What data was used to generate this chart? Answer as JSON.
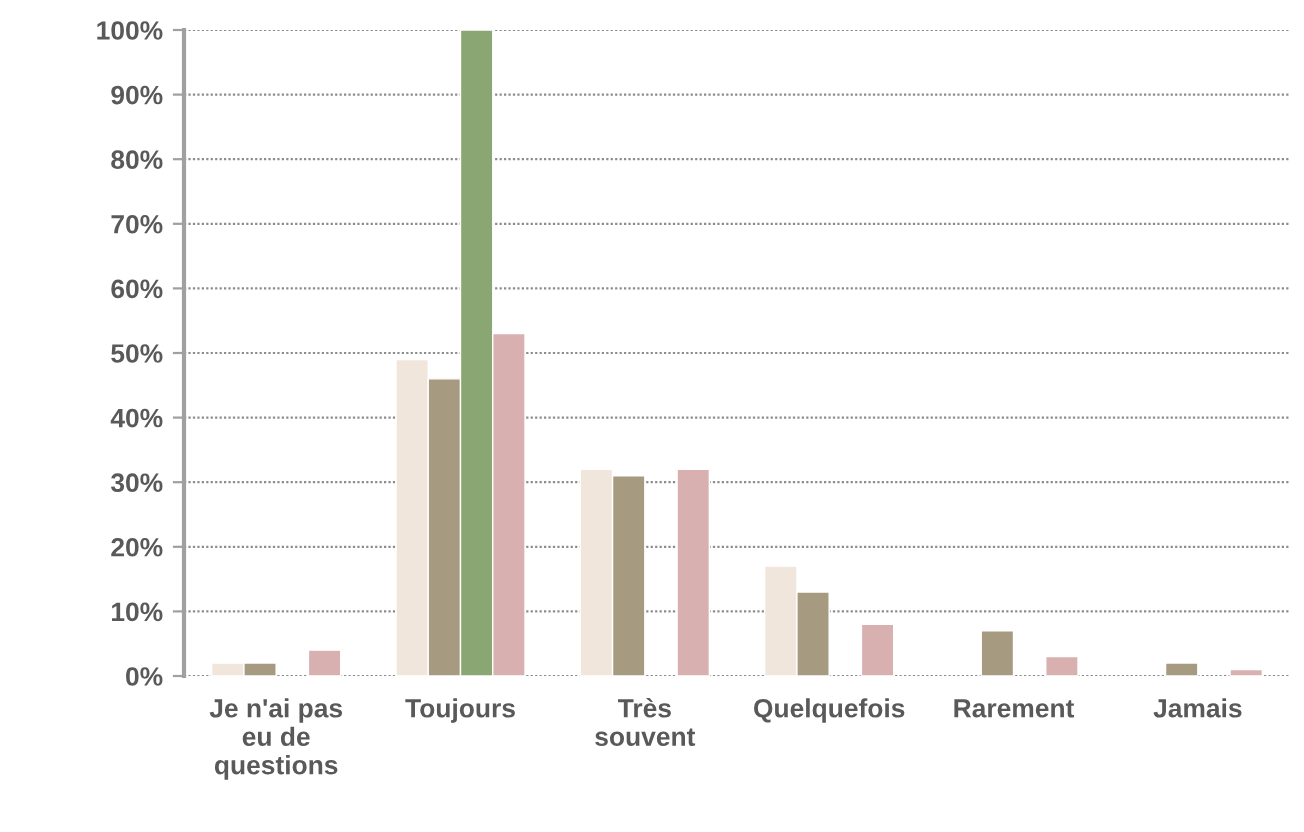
{
  "chart_data": {
    "type": "bar",
    "categories": [
      "Je n'ai pas\neu de\nquestions",
      "Toujours",
      "Très\nsouvent",
      "Quelquefois",
      "Rarement",
      "Jamais"
    ],
    "series": [
      {
        "color": "#f0e6dc",
        "values": [
          2,
          49,
          32,
          17,
          null,
          null
        ]
      },
      {
        "color": "#a69a80",
        "values": [
          2,
          46,
          31,
          13,
          7,
          2
        ]
      },
      {
        "color": "#8aa672",
        "values": [
          null,
          100,
          null,
          null,
          null,
          null
        ]
      },
      {
        "color": "#d9b0b0",
        "values": [
          4,
          53,
          32,
          8,
          3,
          1
        ]
      }
    ],
    "ylim": [
      0,
      100
    ],
    "yticks": [
      {
        "value": 0,
        "label": "0%"
      },
      {
        "value": 10,
        "label": "10%"
      },
      {
        "value": 20,
        "label": "20%"
      },
      {
        "value": 30,
        "label": "30%"
      },
      {
        "value": 40,
        "label": "40%"
      },
      {
        "value": 50,
        "label": "50%"
      },
      {
        "value": 60,
        "label": "60%"
      },
      {
        "value": 70,
        "label": "70%"
      },
      {
        "value": 80,
        "label": "80%"
      },
      {
        "value": 90,
        "label": "90%"
      },
      {
        "value": 100,
        "label": "100%"
      }
    ],
    "grid": "y"
  }
}
